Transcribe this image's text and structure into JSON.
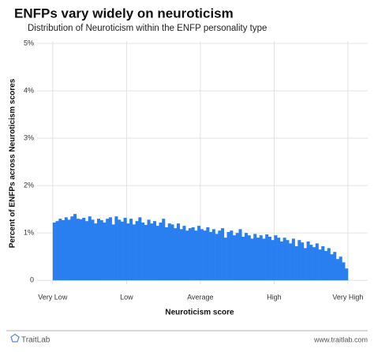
{
  "chart_data": {
    "type": "histogram",
    "title": "ENFPs vary widely on neuroticism",
    "subtitle": "Distribution of Neuroticism within the ENFP personality type",
    "x_label": "Neuroticism score",
    "y_label": "Percent of ENFPs across Neuroticism scores",
    "color": "#2a7ff0",
    "grid": true,
    "bins": [
      0,
      1,
      2,
      3,
      4,
      5,
      6,
      7,
      8,
      9,
      10,
      11,
      12,
      13,
      14,
      15,
      16,
      17,
      18,
      19,
      20,
      21,
      22,
      23,
      24,
      25,
      26,
      27,
      28,
      29,
      30,
      31,
      32,
      33,
      34,
      35,
      36,
      37,
      38,
      39,
      40,
      41,
      42,
      43,
      44,
      45,
      46,
      47,
      48,
      49,
      50,
      51,
      52,
      53,
      54,
      55,
      56,
      57,
      58,
      59,
      60,
      61,
      62,
      63,
      64,
      65,
      66,
      67,
      68,
      69,
      70,
      71,
      72,
      73,
      74,
      75,
      76,
      77,
      78,
      79,
      80,
      81,
      82,
      83,
      84,
      85,
      86,
      87,
      88,
      89,
      90,
      91,
      92,
      93,
      94,
      95,
      96,
      97,
      98,
      99,
      100
    ],
    "values": [
      1.22,
      1.25,
      1.3,
      1.27,
      1.33,
      1.28,
      1.35,
      1.4,
      1.3,
      1.29,
      1.32,
      1.25,
      1.35,
      1.28,
      1.2,
      1.3,
      1.27,
      1.22,
      1.3,
      1.33,
      1.18,
      1.35,
      1.28,
      1.24,
      1.32,
      1.2,
      1.3,
      1.18,
      1.25,
      1.33,
      1.22,
      1.17,
      1.28,
      1.2,
      1.25,
      1.15,
      1.22,
      1.3,
      1.12,
      1.2,
      1.18,
      1.1,
      1.2,
      1.08,
      1.15,
      1.05,
      1.1,
      1.12,
      1.05,
      1.15,
      1.08,
      1.05,
      1.12,
      1.02,
      1.08,
      0.98,
      1.05,
      1.1,
      0.9,
      1.02,
      1.05,
      0.95,
      1.0,
      1.08,
      0.92,
      1.0,
      0.95,
      0.88,
      0.98,
      0.9,
      0.95,
      0.88,
      0.97,
      0.92,
      0.85,
      0.95,
      0.9,
      0.82,
      0.9,
      0.85,
      0.78,
      0.88,
      0.72,
      0.85,
      0.8,
      0.68,
      0.82,
      0.75,
      0.7,
      0.78,
      0.65,
      0.72,
      0.62,
      0.68,
      0.55,
      0.6,
      0.45,
      0.5,
      0.38,
      0.25
    ],
    "xlim": [
      -5.3,
      106.7
    ],
    "xticks": [
      {
        "value": 0,
        "label": "Very Low"
      },
      {
        "value": 25,
        "label": "Low"
      },
      {
        "value": 50,
        "label": "Average"
      },
      {
        "value": 75,
        "label": "High"
      },
      {
        "value": 100,
        "label": "Very High"
      }
    ],
    "ylim": [
      -0.08,
      5.05
    ],
    "yticks": [
      0,
      {
        "value": 1,
        "label": "1%"
      },
      {
        "value": 2,
        "label": "2%"
      },
      {
        "value": 3,
        "label": "3%"
      },
      {
        "value": 4,
        "label": "4%"
      },
      {
        "value": 5,
        "label": "5%"
      }
    ]
  },
  "footer": {
    "brand": "TraitLab",
    "url": "www.traitlab.com"
  }
}
